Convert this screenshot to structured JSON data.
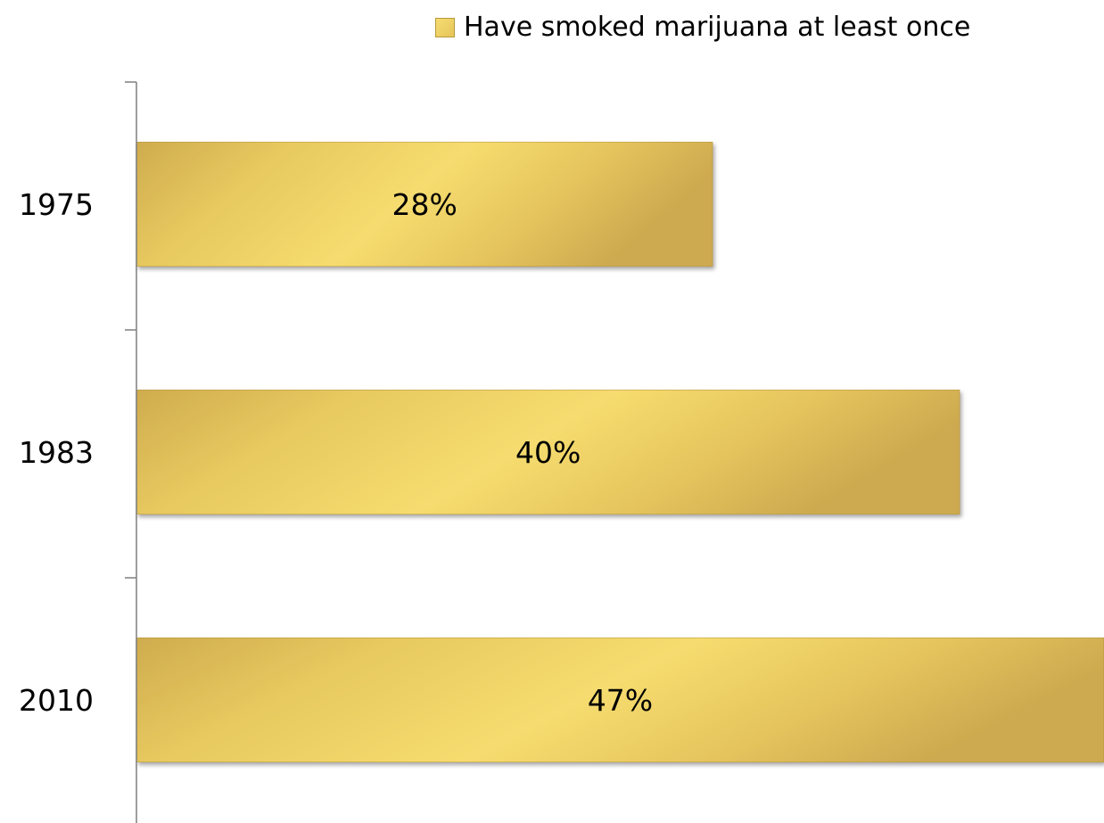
{
  "chart_data": {
    "type": "bar",
    "orientation": "horizontal",
    "categories": [
      "1975",
      "1983",
      "2010"
    ],
    "series": [
      {
        "name": "Have smoked marijuana at least once",
        "values": [
          28,
          40,
          47
        ],
        "data_labels": [
          "28%",
          "40%",
          "47%"
        ]
      }
    ],
    "legend": {
      "label": "Have smoked marijuana at least once",
      "position": "top-right"
    },
    "xlim": [
      0,
      47
    ],
    "grid": false,
    "colors": {
      "bar_light": "#f6dc6f",
      "bar_dark": "#cfac4e",
      "axis": "#7f7f7f"
    }
  }
}
